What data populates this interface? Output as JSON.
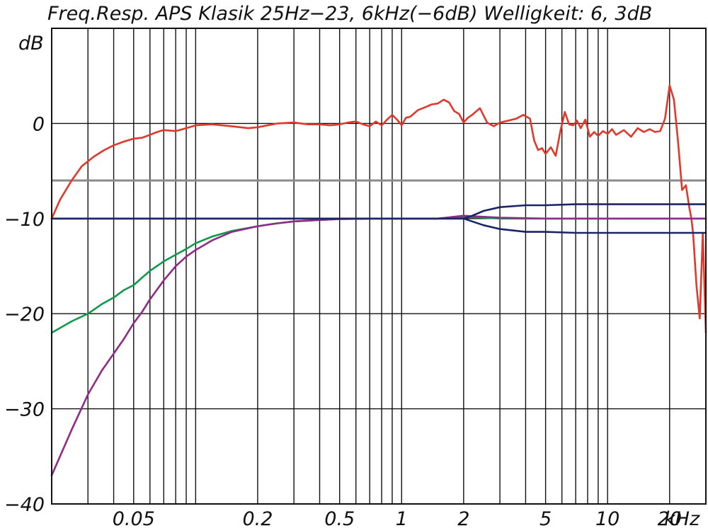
{
  "chart_data": {
    "type": "line",
    "title": "Freq.Resp. APS Klasik 25Hz−23, 6kHz(−6dB) Welligkeit: 6, 3dB",
    "ylabel": "dB",
    "xunit": "kHz",
    "xscale": "log",
    "xlim": [
      0.02,
      30
    ],
    "ylim": [
      -40,
      10
    ],
    "grid": true,
    "legend": "none",
    "x_ticks": [
      {
        "value": 0.05,
        "label": "0.05"
      },
      {
        "value": 0.2,
        "label": "0.2"
      },
      {
        "value": 0.5,
        "label": "0.5"
      },
      {
        "value": 1,
        "label": "1"
      },
      {
        "value": 2,
        "label": "2"
      },
      {
        "value": 5,
        "label": "5"
      },
      {
        "value": 10,
        "label": "10"
      },
      {
        "value": 20,
        "label": "20"
      }
    ],
    "y_ticks": [
      {
        "value": 0,
        "label": "0"
      },
      {
        "value": -10,
        "label": "−10"
      },
      {
        "value": -20,
        "label": "−20"
      },
      {
        "value": -30,
        "label": "−30"
      },
      {
        "value": -40,
        "label": "−40"
      }
    ],
    "reference_line": {
      "y": -6,
      "color": "#8a8a8a"
    },
    "series": [
      {
        "color": "#e0392b",
        "x": [
          0.02,
          0.022,
          0.025,
          0.028,
          0.032,
          0.036,
          0.04,
          0.045,
          0.05,
          0.055,
          0.06,
          0.065,
          0.07,
          0.08,
          0.09,
          0.1,
          0.12,
          0.15,
          0.18,
          0.2,
          0.25,
          0.3,
          0.35,
          0.4,
          0.45,
          0.5,
          0.55,
          0.6,
          0.65,
          0.7,
          0.75,
          0.8,
          0.85,
          0.9,
          0.95,
          1.0,
          1.05,
          1.1,
          1.2,
          1.3,
          1.4,
          1.5,
          1.6,
          1.7,
          1.8,
          1.9,
          2.0,
          2.1,
          2.2,
          2.4,
          2.6,
          2.8,
          3.0,
          3.3,
          3.6,
          3.9,
          4.2,
          4.4,
          4.6,
          4.8,
          5.0,
          5.3,
          5.6,
          5.9,
          6.2,
          6.5,
          6.8,
          7.1,
          7.4,
          7.8,
          8.2,
          8.6,
          9.0,
          9.5,
          10.0,
          10.5,
          11.0,
          12.0,
          13.0,
          14.0,
          15.0,
          16.0,
          17.0,
          18.0,
          19.0,
          20.0,
          21.0,
          22.0,
          23.0,
          24.0,
          25.0,
          25.5,
          26.0,
          27.0,
          28.0,
          29.0,
          30.0
        ],
        "y": [
          -10,
          -8,
          -6,
          -4.5,
          -3.5,
          -2.8,
          -2.3,
          -1.9,
          -1.6,
          -1.5,
          -1.2,
          -0.9,
          -0.7,
          -0.8,
          -0.5,
          -0.2,
          -0.1,
          -0.3,
          -0.5,
          -0.4,
          0,
          0.1,
          -0.1,
          -0.1,
          -0.2,
          -0.1,
          0.1,
          0.2,
          -0.1,
          -0.3,
          0.2,
          -0.2,
          0.4,
          0.9,
          0.4,
          -0.2,
          0.6,
          0.7,
          1.4,
          1.7,
          2,
          2.1,
          2.5,
          2.2,
          1.3,
          1.0,
          0.1,
          0.6,
          0.9,
          1.6,
          0.1,
          -0.3,
          0.1,
          0.3,
          0.5,
          0.9,
          0.5,
          -1.8,
          -2.8,
          -2.6,
          -3.2,
          -2.5,
          -3.4,
          -0.8,
          1.2,
          -0.1,
          -0.2,
          0.3,
          -0.5,
          0.4,
          -1.4,
          -0.9,
          -1.3,
          -0.8,
          -1.1,
          -0.6,
          -1.2,
          -0.7,
          -1.4,
          -0.5,
          -0.9,
          -0.6,
          -0.9,
          -0.8,
          0.5,
          4.0,
          2.5,
          -2,
          -7,
          -6.5,
          -9,
          -10,
          -11.5,
          -17,
          -20.5,
          -11.5,
          -22
        ]
      },
      {
        "color": "#0e9a48",
        "x": [
          0.02,
          0.025,
          0.03,
          0.035,
          0.04,
          0.045,
          0.05,
          0.055,
          0.06,
          0.07,
          0.08,
          0.09,
          0.1,
          0.12,
          0.15,
          0.2,
          0.25,
          0.3,
          0.4,
          0.5,
          0.7,
          1.0,
          1.5,
          2.0,
          3.0,
          5.0,
          10.0,
          20.0,
          30.0
        ],
        "y": [
          -22,
          -20.8,
          -20,
          -19,
          -18.3,
          -17.5,
          -17,
          -16.2,
          -15.5,
          -14.5,
          -13.8,
          -13.2,
          -12.6,
          -11.9,
          -11.3,
          -10.8,
          -10.5,
          -10.3,
          -10.15,
          -10.05,
          -10,
          -10,
          -10,
          -9.8,
          -10,
          -10,
          -10,
          -10,
          -10
        ]
      },
      {
        "color": "#8e2c87",
        "x": [
          0.02,
          0.025,
          0.03,
          0.035,
          0.04,
          0.045,
          0.05,
          0.055,
          0.06,
          0.07,
          0.08,
          0.09,
          0.1,
          0.12,
          0.15,
          0.2,
          0.25,
          0.3,
          0.4,
          0.5,
          0.7,
          1.0,
          1.5,
          2.0,
          3.0,
          5.0,
          10.0,
          20.0,
          30.0
        ],
        "y": [
          -37,
          -32.2,
          -28.5,
          -26,
          -24.2,
          -22.6,
          -21,
          -19.8,
          -18.5,
          -16.5,
          -15,
          -14,
          -13.3,
          -12.3,
          -11.4,
          -10.8,
          -10.5,
          -10.3,
          -10.15,
          -10.05,
          -10,
          -10,
          -10,
          -9.7,
          -9.9,
          -10,
          -10,
          -10,
          -10
        ]
      },
      {
        "color": "#1c2366",
        "x": [
          0.02,
          0.05,
          0.1,
          0.5,
          1.0,
          2.0,
          2.2,
          2.5,
          3.0,
          4.0,
          5.0,
          7.0,
          10.0,
          15.0,
          20.0,
          30.0
        ],
        "y": [
          -10,
          -10,
          -10,
          -10,
          -10,
          -10,
          -9.7,
          -9.2,
          -8.8,
          -8.6,
          -8.6,
          -8.5,
          -8.5,
          -8.5,
          -8.5,
          -8.5
        ]
      },
      {
        "color": "#1c2366",
        "x": [
          0.02,
          0.05,
          0.1,
          0.5,
          1.0,
          2.0,
          2.2,
          2.5,
          3.0,
          4.0,
          5.0,
          7.0,
          10.0,
          15.0,
          20.0,
          30.0
        ],
        "y": [
          -10,
          -10,
          -10,
          -10,
          -10,
          -10,
          -10.3,
          -10.7,
          -11.1,
          -11.4,
          -11.4,
          -11.5,
          -11.5,
          -11.5,
          -11.5,
          -11.5
        ]
      }
    ]
  }
}
